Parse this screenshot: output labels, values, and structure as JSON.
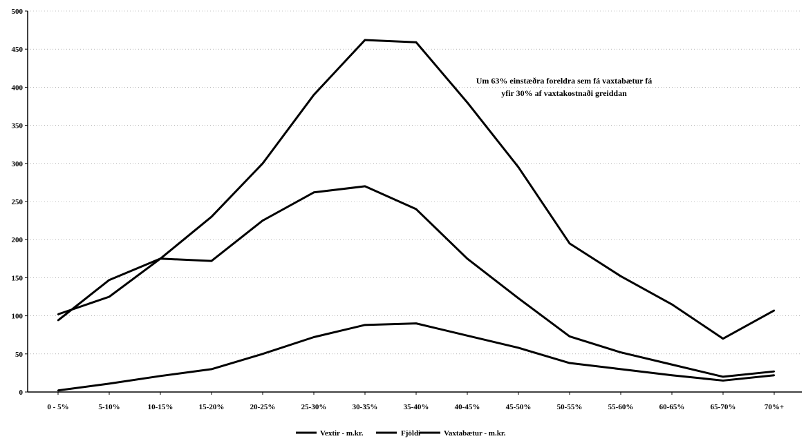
{
  "chart_data": {
    "type": "line",
    "categories": [
      "0 - 5%",
      "5-10%",
      "10-15%",
      "15-20%",
      "20-25%",
      "25-30%",
      "30-35%",
      "35-40%",
      "40-45%",
      "45-50%",
      "50-55%",
      "55-60%",
      "60-65%",
      "65-70%",
      "70%+"
    ],
    "series": [
      {
        "name": "Vextir - m.kr.",
        "values": [
          102,
          125,
          175,
          230,
          300,
          390,
          462,
          459,
          380,
          295,
          195,
          152,
          115,
          70,
          107
        ]
      },
      {
        "name": "Fjöldi",
        "values": [
          94,
          147,
          175,
          172,
          225,
          262,
          270,
          240,
          175,
          123,
          73,
          52,
          36,
          20,
          27
        ]
      },
      {
        "name": "Vaxtabætur - m.kr.",
        "values": [
          2,
          11,
          21,
          30,
          50,
          72,
          88,
          90,
          74,
          58,
          38,
          30,
          22,
          15,
          22
        ]
      }
    ],
    "ylim": [
      0,
      500
    ],
    "yticks": [
      0,
      50,
      100,
      150,
      200,
      250,
      300,
      350,
      400,
      450,
      500
    ],
    "grid": "horizontal-dotted",
    "legend_position": "bottom-center",
    "line_color": "#000000",
    "annotation": {
      "line1": "Um 63% einstæðra foreldra sem fá vaxtabætur fá",
      "line2": "yfir 30% af vaxtakostnaði greiddan"
    }
  }
}
